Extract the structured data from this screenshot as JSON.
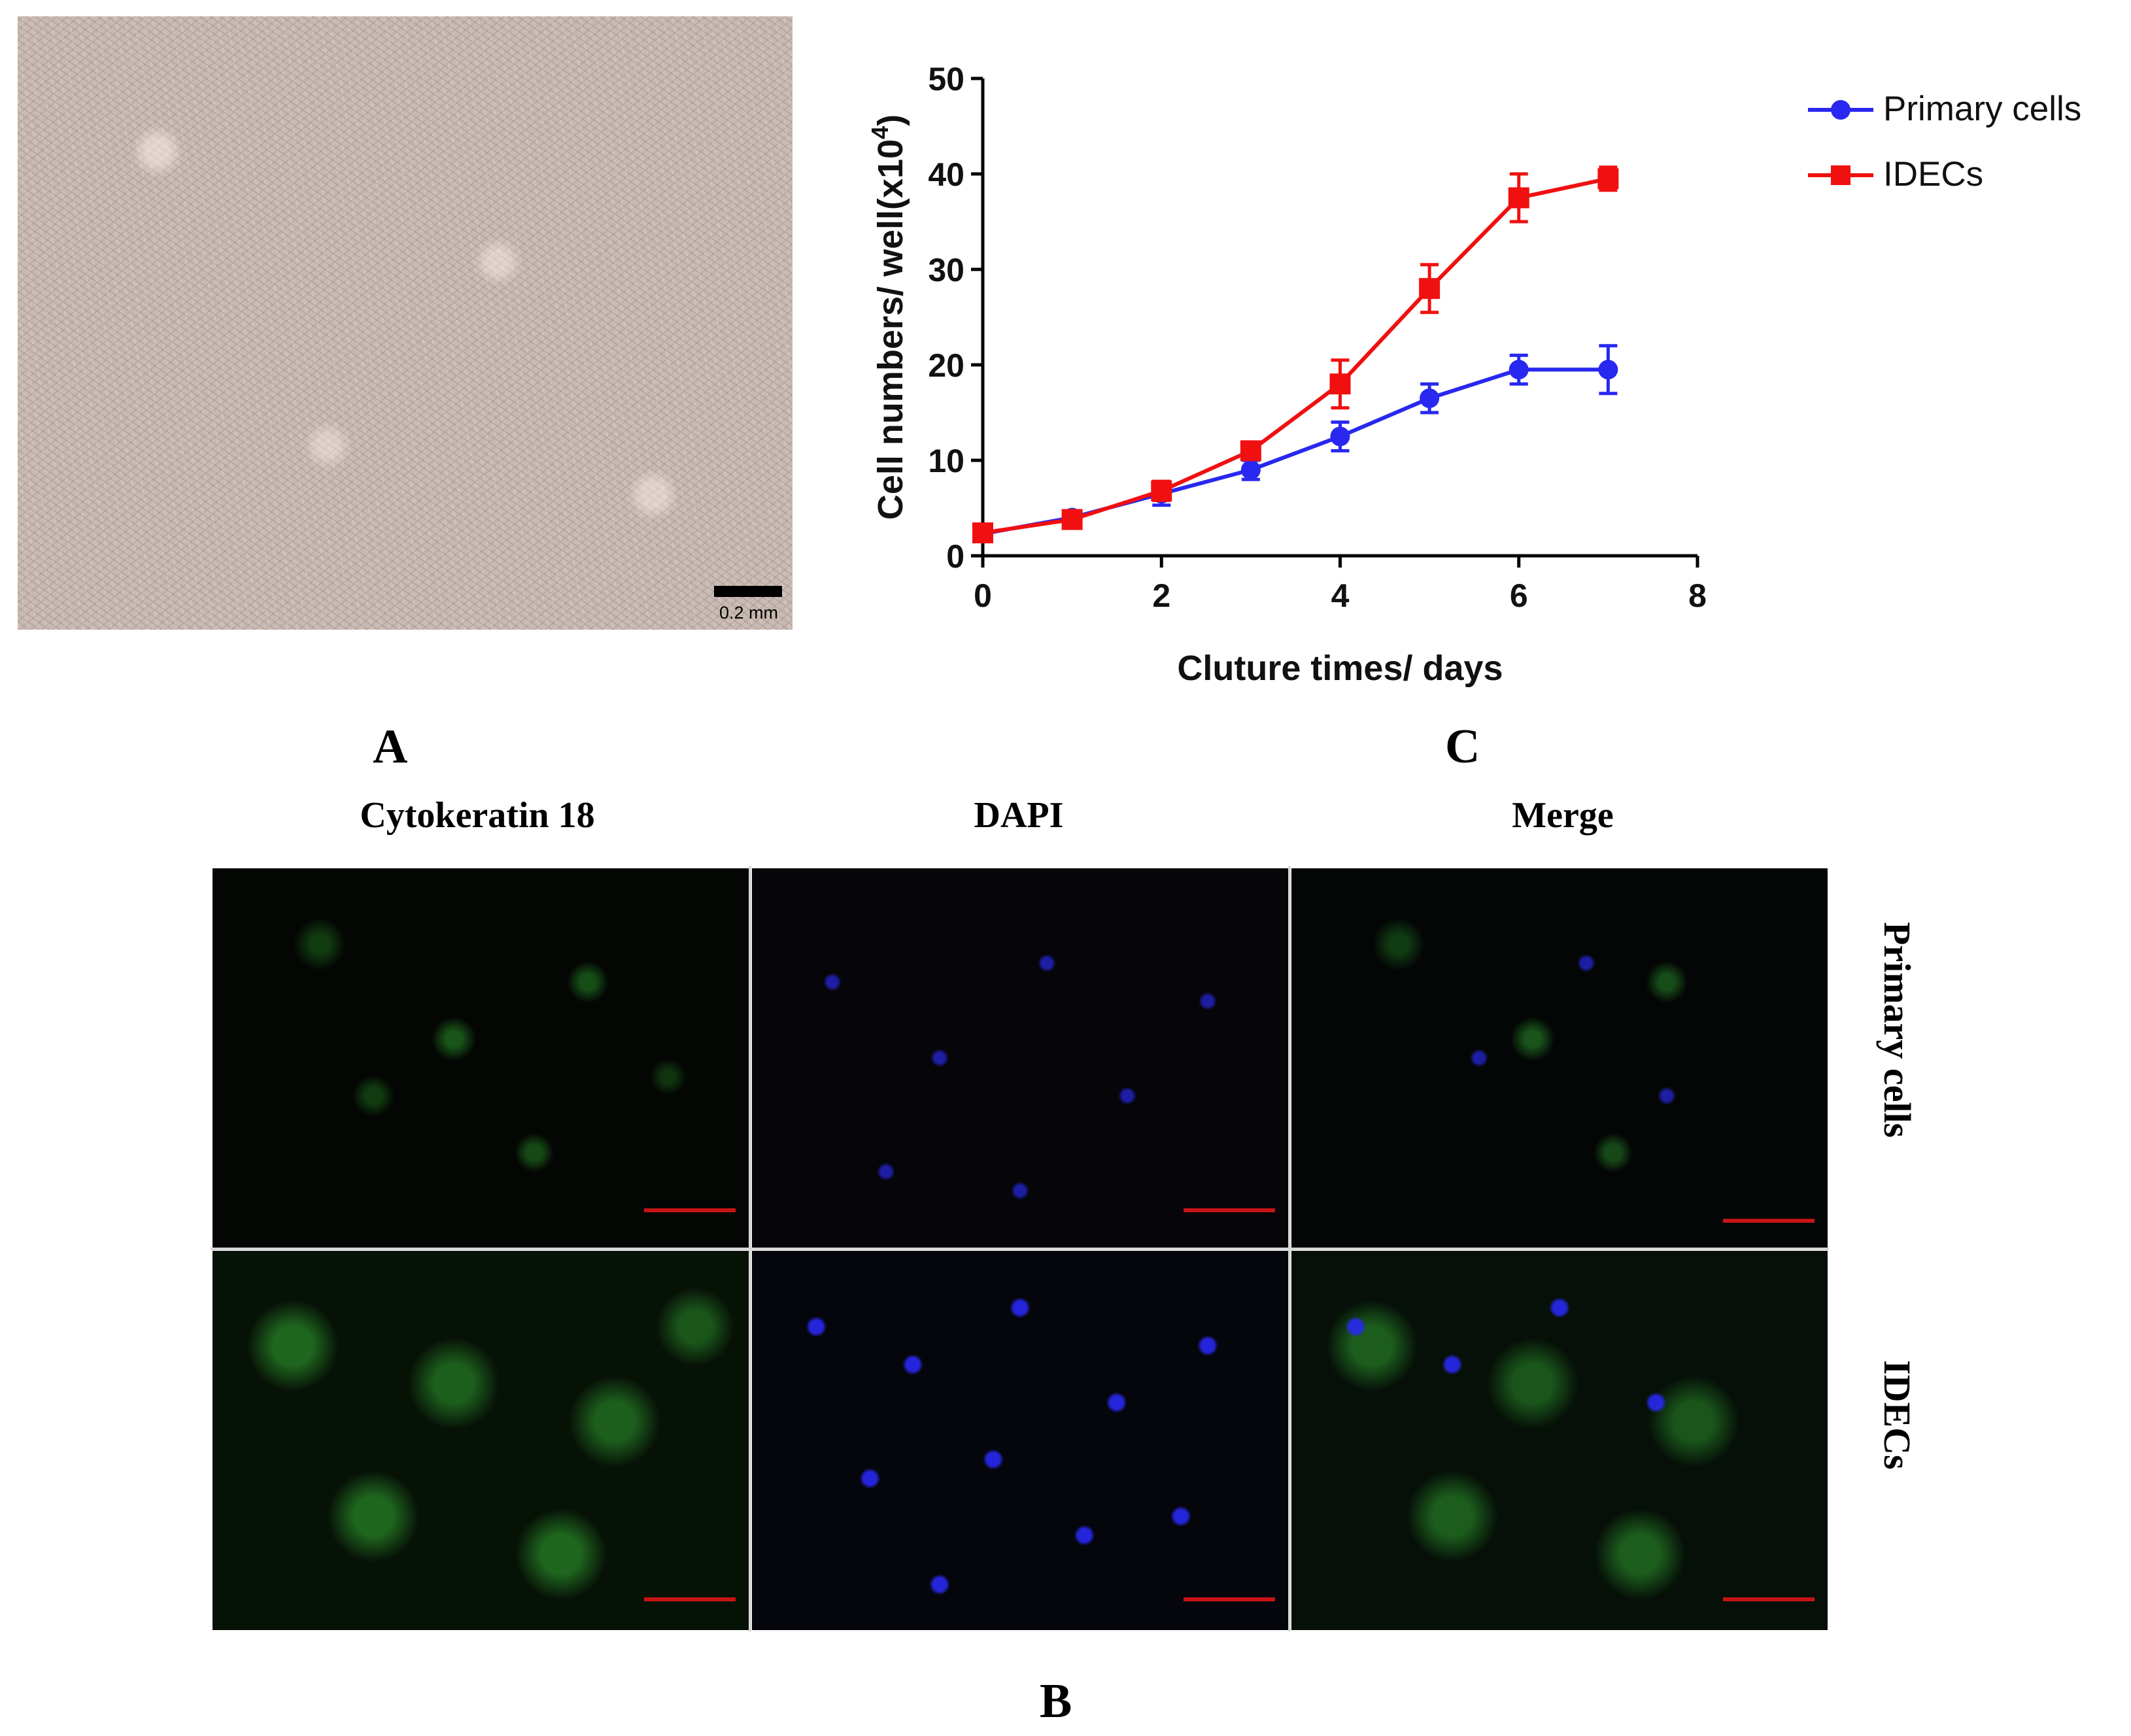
{
  "panel_labels": {
    "a": "A",
    "b": "B",
    "c": "C"
  },
  "micrograph": {
    "scale_bar_label": "0.2 mm"
  },
  "fluorescence": {
    "columns": [
      "Cytokeratin 18",
      "DAPI",
      "Merge"
    ],
    "rows": [
      "Primary cells",
      "IDECs"
    ]
  },
  "colors": {
    "primary": "#2828f0",
    "idecs": "#f01010"
  },
  "chart_data": {
    "type": "line",
    "title": "",
    "xlabel": "Cluture times/ days",
    "ylabel": "Cell numbers/ well(x10",
    "ylabel_superscript": "4",
    "ylabel_suffix": ")",
    "xlim": [
      0,
      8
    ],
    "ylim": [
      0,
      50
    ],
    "xticks": [
      0,
      2,
      4,
      6,
      8
    ],
    "yticks": [
      0,
      10,
      20,
      30,
      40,
      50
    ],
    "grid": false,
    "legend_position": "top-right",
    "x": [
      0,
      1,
      2,
      3,
      4,
      5,
      6,
      7
    ],
    "series": [
      {
        "name": "Primary cells",
        "marker": "circle",
        "color": "#2828f0",
        "values": [
          2.3,
          4.0,
          6.5,
          9.0,
          12.5,
          16.5,
          19.5,
          19.5
        ],
        "errors": [
          0.6,
          0.7,
          1.2,
          1.0,
          1.5,
          1.5,
          1.5,
          2.5
        ]
      },
      {
        "name": "IDECs",
        "marker": "square",
        "color": "#f01010",
        "values": [
          2.4,
          3.8,
          6.8,
          11.0,
          18.0,
          28.0,
          37.5,
          39.5
        ],
        "errors": [
          0.5,
          0.6,
          1.0,
          0.8,
          2.5,
          2.5,
          2.5,
          1.2
        ]
      }
    ]
  }
}
